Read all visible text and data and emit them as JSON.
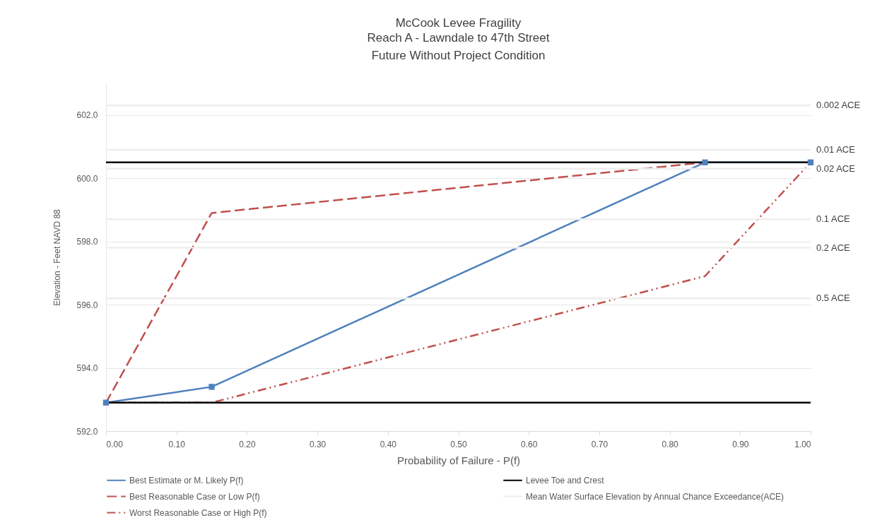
{
  "chart_data": {
    "type": "line",
    "title": "McCook Levee Fragility",
    "subtitle": "Reach A - Lawndale to 47th Street\nFuture Without Project Condition",
    "xlabel": "Probability of Failure - P(f)",
    "ylabel": "Elevation - Feet NAVD 88",
    "xlim": [
      0,
      1
    ],
    "xticks": [
      {
        "value": 0,
        "label": "0.00"
      },
      {
        "value": 0.1,
        "label": "0.10"
      },
      {
        "value": 0.2,
        "label": "0.20"
      },
      {
        "value": 0.3,
        "label": "0.30"
      },
      {
        "value": 0.4,
        "label": "0.40"
      },
      {
        "value": 0.5,
        "label": "0.50"
      },
      {
        "value": 0.6,
        "label": "0.60"
      },
      {
        "value": 0.7,
        "label": "0.70"
      },
      {
        "value": 0.8,
        "label": "0.80"
      },
      {
        "value": 0.9,
        "label": "0.90"
      },
      {
        "value": 1,
        "label": "1.00"
      }
    ],
    "ylim": [
      592,
      603
    ],
    "yticks": [
      {
        "value": 592,
        "label": "592.0"
      },
      {
        "value": 594,
        "label": "594.0"
      },
      {
        "value": 596,
        "label": "596.0"
      },
      {
        "value": 598,
        "label": "598.0"
      },
      {
        "value": 600,
        "label": "600.0"
      },
      {
        "value": 602,
        "label": "602.0"
      }
    ],
    "grid": "y",
    "legend": "bottom",
    "series": [
      {
        "name": "Best Estimate or M. Likely P(f)",
        "color": "#4f81bd",
        "x": [
          0,
          0.15,
          0.85,
          1.0
        ],
        "values": [
          592.9,
          593.4,
          600.5,
          600.5
        ],
        "marker": "square",
        "line_style": "solid"
      },
      {
        "name": "Best Reasonable Case or Low P(f)",
        "color": "#c0504d",
        "x": [
          0,
          0.15,
          0.85
        ],
        "values": [
          592.9,
          598.9,
          600.5
        ],
        "marker": "none",
        "line_style": "dashed"
      },
      {
        "name": "Worst Reasonable Case or High P(f)",
        "color": "#c0504d",
        "x": [
          0,
          0.15,
          0.85,
          1.0
        ],
        "values": [
          592.9,
          592.9,
          596.9,
          600.5
        ],
        "marker": "none",
        "line_style": "dotted"
      },
      {
        "name": "Levee Toe and Crest",
        "color": "#000000",
        "x": [
          0,
          1
        ],
        "values": [
          600.5,
          600.5
        ],
        "marker": "none",
        "line_style": "solid"
      },
      {
        "name": "Mean Water Surface Elevation by Annual Chance Exceedance(ACE)",
        "color": "#eeeeee",
        "x": [
          0,
          1
        ],
        "values": [
          602.3,
          602.3
        ],
        "marker": "none",
        "line_style": "solid"
      }
    ],
    "ref_lines": [
      {
        "axis": "y",
        "value": 592.9,
        "color": "#000000"
      },
      {
        "axis": "y",
        "value": 600.9,
        "color": "#eeeeee",
        "label": "0.01 ACE"
      },
      {
        "axis": "y",
        "value": 600.3,
        "color": "#eeeeee",
        "label": "0.02 ACE"
      },
      {
        "axis": "y",
        "value": 598.7,
        "color": "#eeeeee",
        "label": "0.1 ACE"
      },
      {
        "axis": "y",
        "value": 597.8,
        "color": "#eeeeee",
        "label": "0.2 ACE"
      },
      {
        "axis": "y",
        "value": 596.2,
        "color": "#eeeeee",
        "label": "0.5 ACE"
      }
    ],
    "annotations": [
      {
        "text": "0.002 ACE",
        "x": 1,
        "y": 602.3
      }
    ]
  }
}
